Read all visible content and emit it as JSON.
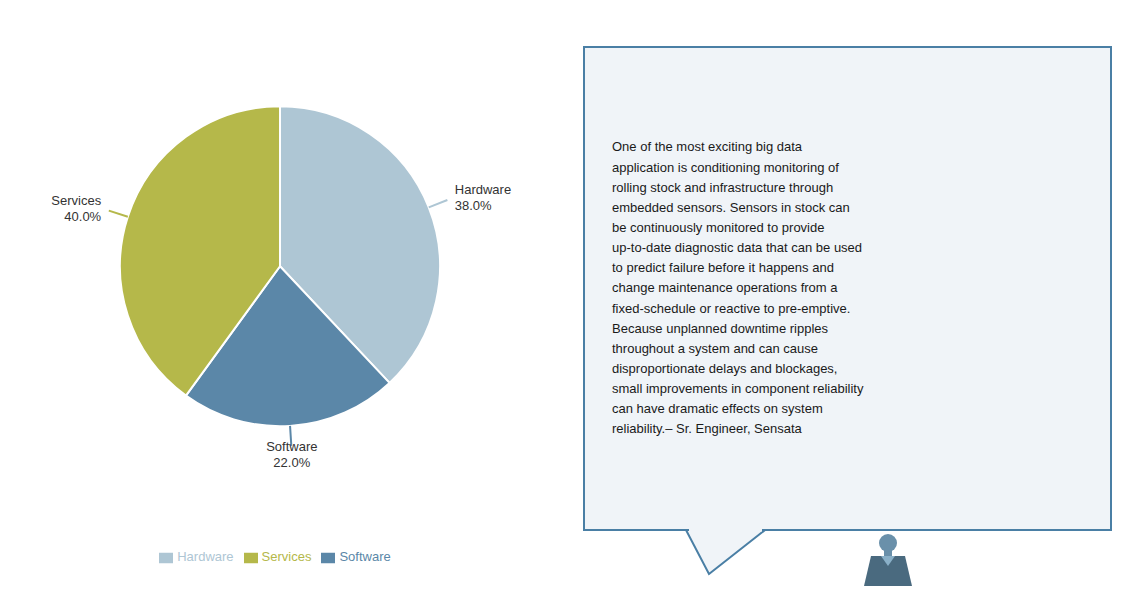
{
  "chart_data": {
    "type": "pie",
    "categories": [
      "Hardware",
      "Software",
      "Services"
    ],
    "values": [
      38.0,
      22.0,
      40.0
    ],
    "value_labels": [
      "38.0%",
      "22.0%",
      "40.0%"
    ],
    "colors": [
      "#aec6d4",
      "#5b87a8",
      "#b5b84a"
    ],
    "data_labels": true,
    "legend": "bottom",
    "annotations": [
      "One of the most exciting big data\napplication is conditioning monitoring of\nrolling stock and infrastructure through\nembedded sensors. Sensors in stock can\nbe continuously monitored to provide\nup-to-date diagnostic data that can be used\nto predict failure before it happens and\nchange maintenance operations from a\nfixed-schedule or reactive to pre-emptive.\nBecause unplanned downtime ripples\nthroughout a system and can cause\ndisproportionate delays and blockages,\nsmall improvements in component reliability\ncan have dramatic effects on system\nreliability.– Sr. Engineer, Sensata"
    ]
  }
}
